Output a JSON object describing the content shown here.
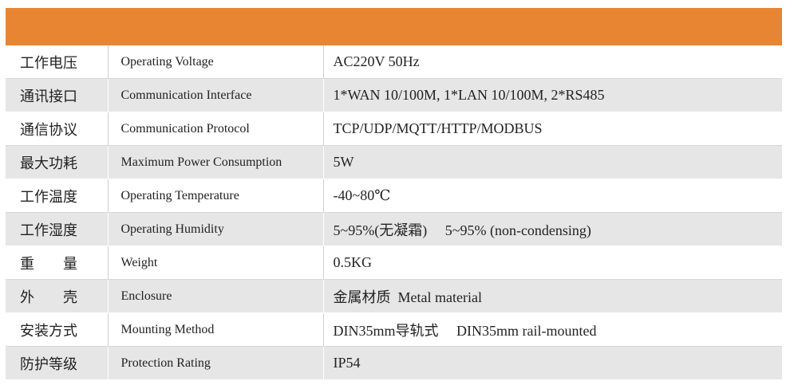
{
  "table": {
    "rows": [
      [
        "工作电压",
        "Operating Voltage",
        "AC220V 50Hz"
      ],
      [
        "通讯接口",
        "Communication Interface",
        "1*WAN 10/100M, 1*LAN 10/100M, 2*RS485"
      ],
      [
        "通信协议",
        "Communication Protocol",
        "TCP/UDP/MQTT/HTTP/MODBUS"
      ],
      [
        "最大功耗",
        "Maximum Power Consumption",
        "5W"
      ],
      [
        "工作温度",
        "Operating Temperature",
        "-40~80℃"
      ],
      [
        "工作湿度",
        "Operating Humidity",
        "5~95%(无凝霜)　 5~95% (non-condensing)"
      ],
      [
        "重　　量",
        "Weight",
        "0.5KG"
      ],
      [
        "外　　壳",
        "Enclosure",
        "金属材质  Metal material"
      ],
      [
        "安装方式",
        "Mounting Method",
        "DIN35mm导轨式　 DIN35mm rail-mounted"
      ],
      [
        "防护等级",
        "Protection Rating",
        "IP54"
      ]
    ]
  }
}
